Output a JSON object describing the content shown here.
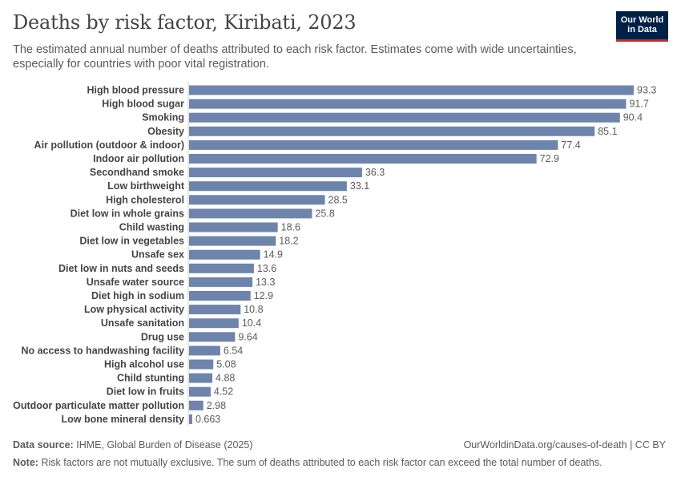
{
  "header": {
    "title": "Deaths by risk factor, Kiribati, 2023",
    "subtitle": "The estimated annual number of deaths attributed to each risk factor. Estimates come with wide uncertainties, especially for countries with poor vital registration."
  },
  "logo": {
    "line1": "Our World",
    "line2": "in Data"
  },
  "footer": {
    "source_label": "Data source:",
    "source_text": "IHME, Global Burden of Disease (2025)",
    "url_text": "OurWorldinData.org/causes-of-death | CC BY",
    "note_label": "Note:",
    "note_text": "Risk factors are not mutually exclusive. The sum of deaths attributed to each risk factor can exceed the total number of deaths."
  },
  "colors": {
    "bar": "#6d84ad",
    "label": "#444444",
    "value": "#5b5b5b",
    "axis": "#cccccc"
  },
  "chart_data": {
    "type": "bar",
    "orientation": "horizontal",
    "categories": [
      "High blood pressure",
      "High blood sugar",
      "Smoking",
      "Obesity",
      "Air pollution (outdoor & indoor)",
      "Indoor air pollution",
      "Secondhand smoke",
      "Low birthweight",
      "High cholesterol",
      "Diet low in whole grains",
      "Child wasting",
      "Diet low in vegetables",
      "Unsafe sex",
      "Diet low in nuts and seeds",
      "Unsafe water source",
      "Diet high in sodium",
      "Low physical activity",
      "Unsafe sanitation",
      "Drug use",
      "No access to handwashing facility",
      "High alcohol use",
      "Child stunting",
      "Diet low in fruits",
      "Outdoor particulate matter pollution",
      "Low bone mineral density"
    ],
    "values": [
      93.3,
      91.7,
      90.4,
      85.1,
      77.4,
      72.9,
      36.3,
      33.1,
      28.5,
      25.8,
      18.6,
      18.2,
      14.9,
      13.6,
      13.3,
      12.9,
      10.8,
      10.4,
      9.64,
      6.54,
      5.08,
      4.88,
      4.52,
      2.98,
      0.663
    ],
    "value_labels": [
      "93.3",
      "91.7",
      "90.4",
      "85.1",
      "77.4",
      "72.9",
      "36.3",
      "33.1",
      "28.5",
      "25.8",
      "18.6",
      "18.2",
      "14.9",
      "13.6",
      "13.3",
      "12.9",
      "10.8",
      "10.4",
      "9.64",
      "6.54",
      "5.08",
      "4.88",
      "4.52",
      "2.98",
      "0.663"
    ],
    "xlim": [
      0,
      93.3
    ],
    "grid": false,
    "legend": "none"
  }
}
